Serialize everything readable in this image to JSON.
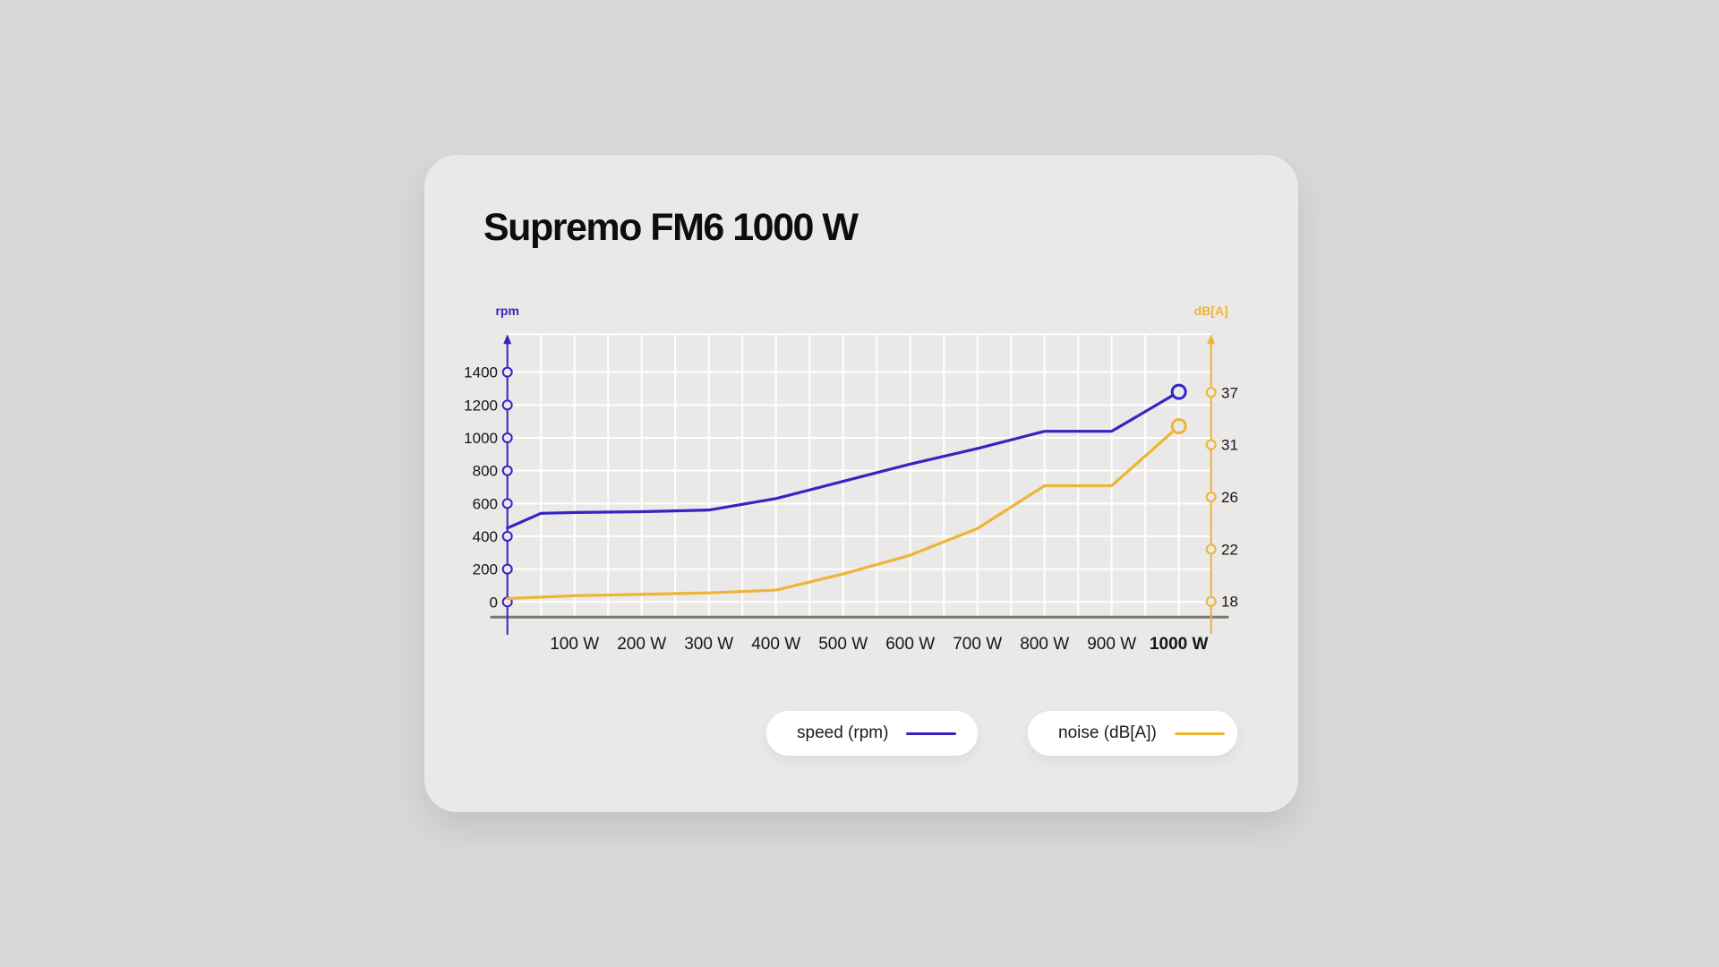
{
  "page": {
    "title": "Supremo FM6 1000 W"
  },
  "colors": {
    "speed": "#3424c3",
    "noise": "#ecb535",
    "grid": "#ffffff",
    "baseline": "#7a7974",
    "tick_text": "#161616",
    "card_bg": "#eae9e7"
  },
  "legend": {
    "items": [
      {
        "key": "speed",
        "label": "speed (rpm)",
        "color": "#3424c3"
      },
      {
        "key": "noise",
        "label": "noise (dB[A])",
        "color": "#ecb535"
      }
    ]
  },
  "chart_data": {
    "type": "line",
    "title": "Supremo FM6 1000 W",
    "x_unit": "W",
    "categories": [
      "100 W",
      "200 W",
      "300 W",
      "400 W",
      "500 W",
      "600 W",
      "700 W",
      "800 W",
      "900 W",
      "1000 W"
    ],
    "x_range_watts": [
      0,
      1000
    ],
    "grid": true,
    "left_axis": {
      "label": "rpm",
      "color": "#3424c3",
      "ticks": [
        0,
        200,
        400,
        600,
        800,
        1000,
        1200,
        1400
      ],
      "ylim": [
        0,
        1400
      ],
      "scale": "linear"
    },
    "right_axis": {
      "label": "dB[A]",
      "color": "#ecb535",
      "ticks": [
        18,
        22,
        26,
        31,
        37
      ],
      "scale": "log-even-ticks"
    },
    "series": [
      {
        "key": "speed",
        "name": "speed (rpm)",
        "axis": "left",
        "color": "#3424c3",
        "points": [
          {
            "x": 0,
            "y": 450
          },
          {
            "x": 50,
            "y": 540
          },
          {
            "x": 100,
            "y": 545
          },
          {
            "x": 200,
            "y": 550
          },
          {
            "x": 300,
            "y": 560
          },
          {
            "x": 400,
            "y": 630
          },
          {
            "x": 500,
            "y": 735
          },
          {
            "x": 600,
            "y": 840
          },
          {
            "x": 700,
            "y": 935
          },
          {
            "x": 800,
            "y": 1040
          },
          {
            "x": 900,
            "y": 1040
          },
          {
            "x": 1000,
            "y": 1280
          }
        ],
        "end_marker": true
      },
      {
        "key": "noise",
        "name": "noise (dB[A])",
        "axis": "right",
        "color": "#ecb535",
        "points": [
          {
            "x": 0,
            "y": 18.2
          },
          {
            "x": 100,
            "y": 18.4
          },
          {
            "x": 200,
            "y": 18.5
          },
          {
            "x": 300,
            "y": 18.6
          },
          {
            "x": 400,
            "y": 18.8
          },
          {
            "x": 500,
            "y": 20
          },
          {
            "x": 600,
            "y": 21.5
          },
          {
            "x": 700,
            "y": 23.5
          },
          {
            "x": 800,
            "y": 27
          },
          {
            "x": 900,
            "y": 27
          },
          {
            "x": 1000,
            "y": 33
          }
        ],
        "end_marker": true
      }
    ]
  }
}
